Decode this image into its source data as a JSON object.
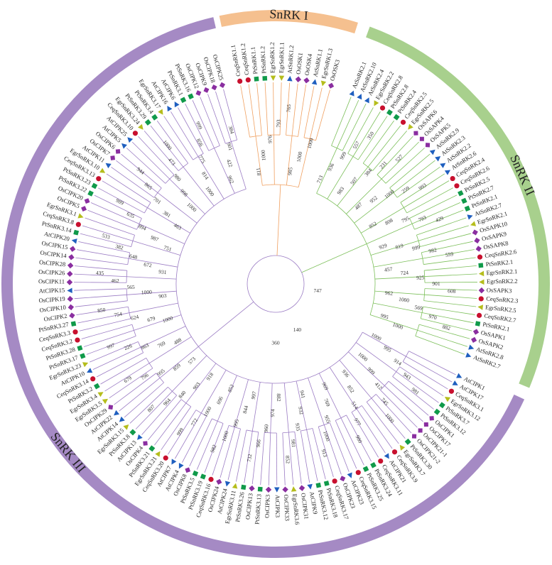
{
  "clades": [
    {
      "label": "SnRK I",
      "color": "#f5c08f",
      "line_color": "#f0a060",
      "leaves": [
        "CeqSnRK1.1",
        "CeqSnRK1.2",
        "PtSnRK1.1",
        "PtSnRK1.2",
        "EgrSnRK1.2",
        "EgrSnRK1.1",
        "AtSnRK1.2",
        "OsOSK1",
        "OsOSK4",
        "AtSnRK1.1",
        "EgrSnRK1.3",
        "OsOSK3"
      ],
      "bootstrap": [
        811,
        1000,
        976,
        793,
        765,
        985,
        1000,
        1000
      ]
    },
    {
      "label": "SnRK II",
      "color": "#a8d08d",
      "line_color": "#7cbf5a",
      "leaves": [
        "AtSnRK2.1",
        "AtSnRK2.10",
        "AtSnRK2.4",
        "EgrSnRK2.2",
        "CeqSnRK2.8",
        "PtSnRK2.8",
        "PtSnRK2.4",
        "CeqSnRK2.5",
        "EgrSnRK2.5",
        "OsSAPK6",
        "OsSAPK4",
        "OsSAPK5",
        "AtSnRK2.9",
        "AtSnRK2.3",
        "AtSnRK2.2",
        "AtSnRK2.6",
        "CeqSnRK2.4",
        "CeqSnRK2.6",
        "PtSnRK2.5",
        "PtSnRK2.7",
        "PtSnRK2.1",
        "AtSnRK2.7",
        "EgrSnRK2.1",
        "OsSAPK10",
        "OsSAPK9",
        "OsSAPK8",
        "CeqSnRK2.6",
        "PtSnRK2.1",
        "EgrSnRK2.1",
        "EgrSnRK2.2",
        "OsSAPK3",
        "CeqSnRK2.3",
        "EgrSnRK2.5",
        "CeqSnRK2.7",
        "PtSnRK2.1",
        "OsSAPK1",
        "OsSAPK2",
        "AtSnRK2.8",
        "AtSnRK2.7"
      ],
      "bootstrap": [
        713,
        936,
        999,
        557,
        350,
        983,
        507,
        384,
        231,
        527,
        487,
        952,
        1000,
        259,
        993,
        852,
        808,
        795,
        793,
        429,
        929,
        819,
        999,
        982,
        559,
        457,
        724,
        925,
        901,
        608,
        962,
        1000,
        569,
        970,
        882,
        995,
        1000
      ]
    },
    {
      "label": "SnRK III",
      "color": "#a58ac4",
      "line_color": "#9b7cc4",
      "leaves": [
        "AtCIPK1",
        "AtCIPK17",
        "CeqSnRK3.1",
        "EgrSnRK3.12",
        "PtSnRK3.7",
        "PtSnRK3.12",
        "OsCIPK1",
        "OsCIPK17",
        "OsCIPK21-1",
        "OsCIPK21-2",
        "PtSnRK3.30",
        "EgrSnRK3.7",
        "CeqSnRK3.9",
        "AtCIPK21",
        "CeqSnRK3.11",
        "PtSnRK3.24",
        "PtSnRK3.25",
        "CeqSnRK3.15",
        "AtCIPK23",
        "OsCIPK23",
        "CeqSnRK3.17",
        "PtSnRK3.18",
        "PtSnRK3.12",
        "AtCIPK9",
        "OsCIPK31",
        "EgrSnRK3.6",
        "OsCIPK33",
        "AtCIPK3",
        "OsCIPK3",
        "PtSnRK3.13",
        "OsCIPK13",
        "PtSnRK3.26",
        "EgrSnRK3.11",
        "AtCIPK24",
        "OsCIPK24",
        "CeqSnRK3.16",
        "PtSnRK3.19",
        "PtSnRK3.5",
        "OsCIPK8",
        "AtCIPK4",
        "AtCIPK7",
        "CeqSnRK3.20",
        "EgrSnRK3.21",
        "PtSnRK3.21",
        "OsCIPK4",
        "AtCIPK13",
        "PtSnRK3.8",
        "EgrSnRK3.15",
        "AtCIPK14",
        "AtCIPK22",
        "OsCIPK29",
        "EgrSnRK3.5",
        "EgrSnRK3.4",
        "PtSnRK3.2",
        "CeqSnRK3.14",
        "AtCIPK10",
        "EgrSnRK3.23",
        "PtSnRK3.17",
        "PtSnRK3.28",
        "CeqSnRK3.2",
        "CeqSnRK3.3",
        "PtSnRK3.27",
        "OsCIPK2",
        "OsCIPK10",
        "OsCIPK19",
        "AtCIPK15",
        "OsCIPK11",
        "OsCIPK26",
        "OsCIPK28",
        "OsCIPK14",
        "OsCIPK15",
        "AtCIPK20",
        "PtSnRK3.14",
        "CeqSnRK3.8",
        "EgrSnRK3.1",
        "OsCIPK5",
        "OsCIPK20",
        "PtSnRK3.22",
        "PtSnRK3.23",
        "CeqSnRK3.13",
        "EgrSnRK3.10",
        "AtCIPK11",
        "OsCIPK7",
        "OsCIPK6",
        "AtCIPK5",
        "AtCIPK25",
        "CeqSnRK3.10",
        "EgrSnRK3.24",
        "PtSnRK3.29",
        "PtSnRK3.4",
        "EgrSnRK3.17",
        "AtCIPK16",
        "AtCIPK6",
        "PtSnRK3.1",
        "PtSnRK3.16",
        "OsCIPK12",
        "OsCIPK9",
        "OsCIPK18",
        "OsCIPK25"
      ],
      "bootstrap": [
        1000,
        995,
        914,
        943,
        981,
        1000,
        999,
        412,
        745,
        1000,
        936,
        852,
        514,
        977,
        980,
        969,
        769,
        955,
        1000,
        913,
        941,
        932,
        935,
        981,
        852,
        882,
        974,
        960,
        966,
        732,
        997,
        844,
        995,
        1000,
        982,
        852,
        696,
        1000,
        772,
        999,
        918,
        903,
        840,
        964,
        807,
        573,
        859,
        995,
        796,
        679,
        488,
        769,
        863,
        226,
        997,
        1000,
        679,
        624,
        754,
        850,
        903,
        1000,
        565,
        462,
        435,
        931,
        672,
        648,
        382,
        533,
        751,
        987,
        894,
        635,
        989,
        463,
        381,
        701,
        865,
        944,
        1000,
        998,
        980,
        473,
        1000,
        1000,
        814,
        775,
        856,
        999,
        962,
        422,
        901,
        384
      ]
    }
  ],
  "root_bootstrap": [
    747,
    140,
    360
  ]
}
